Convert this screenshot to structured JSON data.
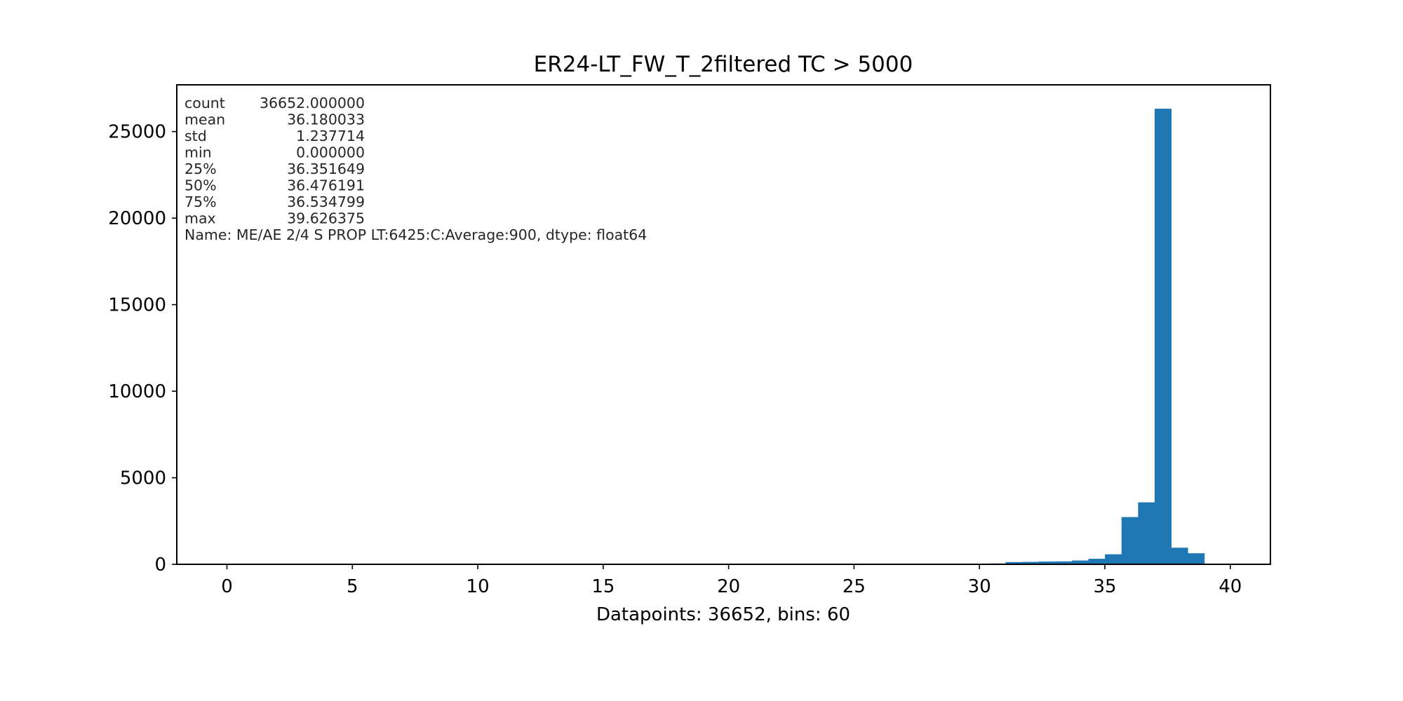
{
  "chart_data": {
    "type": "bar",
    "title": "ER24-LT_FW_T_2filtered TC > 5000",
    "xlabel": "Datapoints: 36652, bins: 60",
    "ylabel": "",
    "xlim": [
      -2,
      41.6
    ],
    "ylim": [
      0,
      27700
    ],
    "xticks": [
      0,
      5,
      10,
      15,
      20,
      25,
      30,
      35,
      40
    ],
    "yticks": [
      0,
      5000,
      10000,
      15000,
      20000,
      25000
    ],
    "bins": {
      "start": 29.06,
      "width": 0.6604,
      "counts": [
        10,
        30,
        50,
        130,
        140,
        160,
        170,
        220,
        320,
        580,
        2730,
        3580,
        26320,
        960,
        640
      ]
    },
    "color": "#1f77b4",
    "grid": false,
    "stats_text": [
      {
        "key": "count",
        "value": "36652.000000"
      },
      {
        "key": "mean",
        "value": "36.180033"
      },
      {
        "key": "std",
        "value": "1.237714"
      },
      {
        "key": "min",
        "value": "0.000000"
      },
      {
        "key": "25%",
        "value": "36.351649"
      },
      {
        "key": "50%",
        "value": "36.476191"
      },
      {
        "key": "75%",
        "value": "36.534799"
      },
      {
        "key": "max",
        "value": "39.626375"
      }
    ],
    "stats_name_line": "Name: ME/AE 2/4 S PROP LT:6425:C:Average:900, dtype: float64"
  }
}
